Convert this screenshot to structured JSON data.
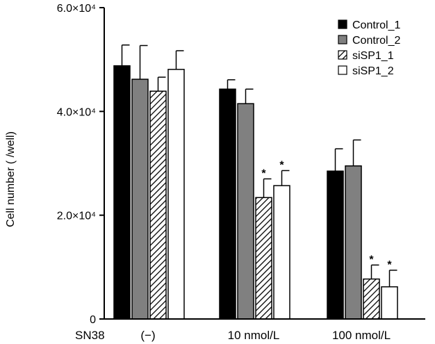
{
  "chart_data": {
    "type": "bar",
    "ylabel": "Cell number ( /well)",
    "xlabel_prefix": "SN38",
    "categories": [
      "(−)",
      "10 nmol/L",
      "100 nmol/L"
    ],
    "ylim": [
      0,
      60000
    ],
    "y_ticks": [
      {
        "value": 0,
        "label": "0"
      },
      {
        "value": 20000,
        "label": "2.0×10⁴"
      },
      {
        "value": 40000,
        "label": "4.0×10⁴"
      },
      {
        "value": 60000,
        "label": "6.0×10⁴"
      }
    ],
    "legend_position": "top-right",
    "series": [
      {
        "name": "Control_1",
        "style": "solid",
        "color": "#000000",
        "values": [
          48800,
          44300,
          28500
        ],
        "errors": [
          4000,
          1800,
          4300
        ],
        "significant": [
          false,
          false,
          false
        ]
      },
      {
        "name": "Control_2",
        "style": "solid",
        "color": "#808080",
        "values": [
          46200,
          41500,
          29500
        ],
        "errors": [
          6500,
          2800,
          5000
        ],
        "significant": [
          false,
          false,
          false
        ]
      },
      {
        "name": "siSP1_1",
        "style": "hatched",
        "color": "#000000",
        "values": [
          43900,
          23400,
          7700
        ],
        "errors": [
          2700,
          3600,
          2700
        ],
        "significant": [
          false,
          true,
          true
        ]
      },
      {
        "name": "siSP1_2",
        "style": "open",
        "color": "#ffffff",
        "values": [
          48100,
          25700,
          6200
        ],
        "errors": [
          3600,
          2900,
          3200
        ],
        "significant": [
          false,
          true,
          true
        ]
      }
    ],
    "significance_marker": "*"
  }
}
